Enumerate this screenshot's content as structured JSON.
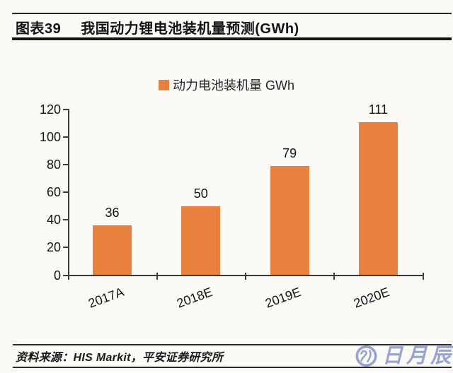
{
  "header": {
    "figure_label": "图表39",
    "title": "我国动力锂电池装机量预测(GWh)"
  },
  "legend": {
    "label": "动力电池装机量 GWh",
    "swatch_color": "#E8803E"
  },
  "chart_data": {
    "type": "bar",
    "title": "我国动力锂电池装机量预测(GWh)",
    "categories": [
      "2017A",
      "2018E",
      "2019E",
      "2020E"
    ],
    "values": [
      36,
      50,
      79,
      111
    ],
    "series_name": "动力电池装机量 GWh",
    "xlabel": "",
    "ylabel": "",
    "ylim": [
      0,
      120
    ],
    "yticks": [
      0,
      20,
      40,
      60,
      80,
      100,
      120
    ],
    "grid": "off",
    "legend_position": "top-center",
    "bar_color": "#E8803E"
  },
  "footer": {
    "source": "资料来源：HIS Markit，平安证券研究所"
  },
  "logo": {
    "text": "日月辰",
    "color": "#97A4D2"
  },
  "colors": {
    "bar": "#E8803E",
    "axis": "#3C3C3C",
    "background": "#FBFAF7",
    "logo": "#97A4D2"
  }
}
